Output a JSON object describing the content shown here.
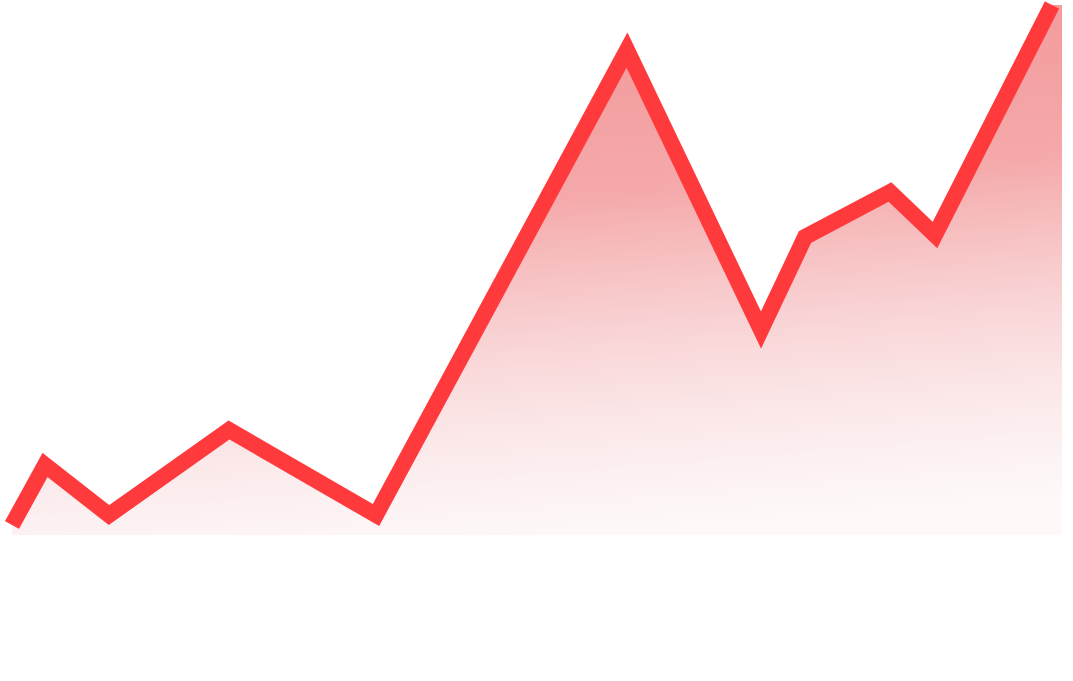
{
  "chart_data": {
    "type": "area",
    "color": "#ff3a3d",
    "x": [
      12,
      45,
      109,
      229,
      376,
      627,
      761,
      805,
      890,
      935,
      1052
    ],
    "values": [
      10,
      70,
      20,
      105,
      20,
      485,
      205,
      298,
      343,
      300,
      530
    ],
    "xlim": [
      0,
      1073
    ],
    "ylim": [
      0,
      535
    ]
  }
}
